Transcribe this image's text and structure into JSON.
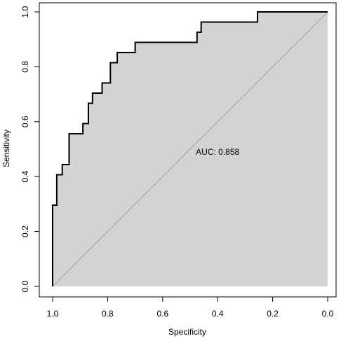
{
  "chart_data": {
    "type": "line",
    "xlabel": "Specificity",
    "ylabel": "Sensitivity",
    "xlim": [
      1.0,
      0.0
    ],
    "ylim": [
      0.0,
      1.0
    ],
    "x_reversed": true,
    "x_ticks": [
      "1.0",
      "0.8",
      "0.6",
      "0.4",
      "0.2",
      "0.0"
    ],
    "x_tick_values": [
      1.0,
      0.8,
      0.6,
      0.4,
      0.2,
      0.0
    ],
    "y_ticks": [
      "0.0",
      "0.2",
      "0.4",
      "0.6",
      "0.8",
      "1.0"
    ],
    "y_tick_values": [
      0.0,
      0.2,
      0.4,
      0.6,
      0.8,
      1.0
    ],
    "grid": false,
    "annotation": "AUC: 0.858",
    "annotation_position": [
      0.4,
      0.48
    ],
    "colors": {
      "area": "#d3d3d3",
      "curve": "#000000",
      "diagonal": "#9a9a9a"
    },
    "series": [
      {
        "name": "",
        "x": [
          1.0,
          1.0,
          0.985,
          0.985,
          0.965,
          0.965,
          0.94,
          0.94,
          0.93,
          0.93,
          0.89,
          0.89,
          0.87,
          0.87,
          0.855,
          0.855,
          0.82,
          0.82,
          0.79,
          0.79,
          0.765,
          0.765,
          0.74,
          0.74,
          0.7,
          0.7,
          0.475,
          0.475,
          0.46,
          0.46,
          0.255,
          0.255,
          0.0
        ],
        "y": [
          0.0,
          0.296,
          0.296,
          0.407,
          0.407,
          0.444,
          0.444,
          0.556,
          0.556,
          0.556,
          0.556,
          0.593,
          0.593,
          0.667,
          0.667,
          0.704,
          0.704,
          0.741,
          0.741,
          0.815,
          0.815,
          0.852,
          0.852,
          0.852,
          0.852,
          0.889,
          0.889,
          0.926,
          0.926,
          0.963,
          0.963,
          1.0,
          1.0
        ]
      }
    ]
  }
}
